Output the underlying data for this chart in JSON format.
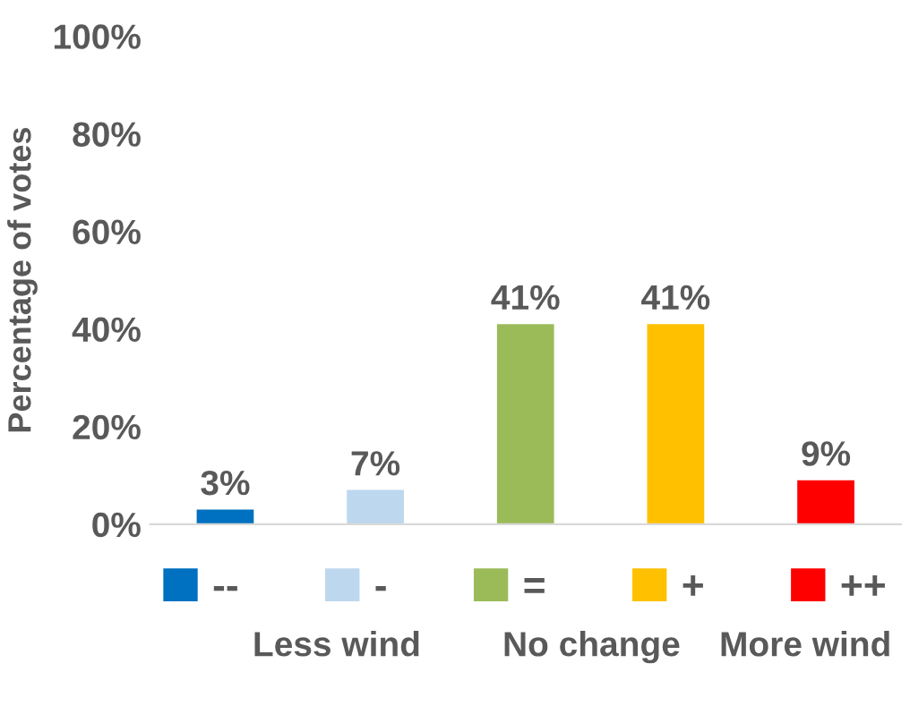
{
  "chart_data": {
    "type": "bar",
    "ylabel": "Percentage of votes",
    "categories": [
      null,
      null,
      null,
      null,
      null
    ],
    "series": [
      {
        "name": "--",
        "color": "#0070c0",
        "values": [
          3,
          null,
          null,
          null,
          null
        ],
        "value_labels": [
          "3%",
          null,
          null,
          null,
          null
        ]
      },
      {
        "name": "-",
        "color": "#bdd7ee",
        "values": [
          null,
          7,
          null,
          null,
          null
        ],
        "value_labels": [
          null,
          "7%",
          null,
          null,
          null
        ]
      },
      {
        "name": "=",
        "color": "#9bbb59",
        "values": [
          null,
          null,
          41,
          null,
          null
        ],
        "value_labels": [
          null,
          null,
          "41%",
          null,
          null
        ]
      },
      {
        "name": "+",
        "color": "#ffc000",
        "values": [
          null,
          null,
          null,
          41,
          null
        ],
        "value_labels": [
          null,
          null,
          null,
          "41%",
          null
        ]
      },
      {
        "name": "++",
        "color": "#ff0000",
        "values": [
          null,
          null,
          null,
          null,
          9
        ],
        "value_labels": [
          null,
          null,
          null,
          null,
          "9%"
        ]
      }
    ],
    "ylim": [
      0,
      100
    ],
    "yticks": [
      {
        "value": 0,
        "label": "0%"
      },
      {
        "value": 20,
        "label": "20%"
      },
      {
        "value": 40,
        "label": "40%"
      },
      {
        "value": 60,
        "label": "60%"
      },
      {
        "value": 80,
        "label": "80%"
      },
      {
        "value": 100,
        "label": "100%"
      }
    ],
    "grid": false,
    "legend": "bottom",
    "annotations": [
      "Less wind",
      "No change",
      "More wind"
    ]
  }
}
